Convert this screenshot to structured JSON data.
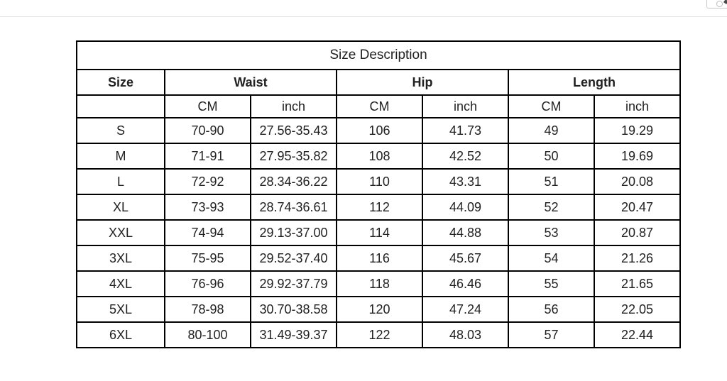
{
  "page": {
    "background": "#ffffff",
    "top_divider_color": "#e3e3e3"
  },
  "corner_button": {
    "icon": "magnifier-icon"
  },
  "table": {
    "title": "Size Description",
    "header": [
      "Size",
      "Waist",
      "Hip",
      "Length"
    ],
    "unit_labels": [
      "CM",
      "inch",
      "CM",
      "inch",
      "CM",
      "inch"
    ],
    "rows": [
      [
        "S",
        "70-90",
        "27.56-35.43",
        "106",
        "41.73",
        "49",
        "19.29"
      ],
      [
        "M",
        "71-91",
        "27.95-35.82",
        "108",
        "42.52",
        "50",
        "19.69"
      ],
      [
        "L",
        "72-92",
        "28.34-36.22",
        "110",
        "43.31",
        "51",
        "20.08"
      ],
      [
        "XL",
        "73-93",
        "28.74-36.61",
        "112",
        "44.09",
        "52",
        "20.47"
      ],
      [
        "XXL",
        "74-94",
        "29.13-37.00",
        "114",
        "44.88",
        "53",
        "20.87"
      ],
      [
        "3XL",
        "75-95",
        "29.52-37.40",
        "116",
        "45.67",
        "54",
        "21.26"
      ],
      [
        "4XL",
        "76-96",
        "29.92-37.79",
        "118",
        "46.46",
        "55",
        "21.65"
      ],
      [
        "5XL",
        "78-98",
        "30.70-38.58",
        "120",
        "47.24",
        "56",
        "22.05"
      ],
      [
        "6XL",
        "80-100",
        "31.49-39.37",
        "122",
        "48.03",
        "57",
        "22.44"
      ]
    ],
    "colors": {
      "text_black": "#212121",
      "accent_red": "#ee2418",
      "border_black": "#000000"
    }
  }
}
